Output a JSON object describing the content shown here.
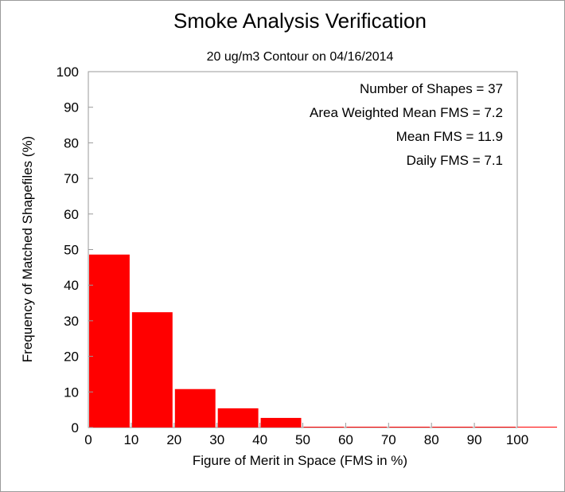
{
  "chart_data": {
    "type": "bar",
    "title": "Smoke Analysis Verification",
    "subtitle": "20 ug/m3 Contour on 04/16/2014",
    "xlabel": "Figure of Merit in Space (FMS in %)",
    "ylabel": "Frequency of Matched Shapefiles (%)",
    "xlim": [
      0,
      100
    ],
    "ylim": [
      0,
      100
    ],
    "xticks": [
      "0",
      "10",
      "20",
      "30",
      "40",
      "50",
      "60",
      "70",
      "80",
      "90",
      "100"
    ],
    "yticks": [
      "0",
      "10",
      "20",
      "30",
      "40",
      "50",
      "60",
      "70",
      "80",
      "90",
      "100"
    ],
    "bins": [
      {
        "start": 0,
        "end": 10,
        "value": 48.6
      },
      {
        "start": 10,
        "end": 20,
        "value": 32.4
      },
      {
        "start": 20,
        "end": 30,
        "value": 10.8
      },
      {
        "start": 30,
        "end": 40,
        "value": 5.4
      },
      {
        "start": 40,
        "end": 50,
        "value": 2.7
      },
      {
        "start": 50,
        "end": 60,
        "value": 0
      },
      {
        "start": 60,
        "end": 70,
        "value": 0
      },
      {
        "start": 70,
        "end": 80,
        "value": 0
      },
      {
        "start": 80,
        "end": 90,
        "value": 0
      },
      {
        "start": 90,
        "end": 100,
        "value": 0
      }
    ],
    "bar_color": "#ff0000",
    "annotations": [
      "Number of Shapes = 37",
      "Area Weighted Mean FMS = 7.2",
      "Mean FMS = 11.9",
      "Daily FMS = 7.1"
    ],
    "grid": false
  }
}
